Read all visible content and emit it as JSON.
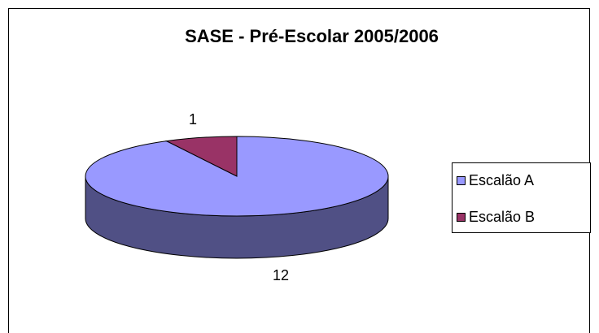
{
  "chart_data": {
    "type": "pie",
    "title": "SASE - Pré-Escolar 2005/2006",
    "categories": [
      "Escalão A",
      "Escalão B"
    ],
    "values": [
      12,
      1
    ],
    "colors": [
      "#9999ff",
      "#993366"
    ],
    "legend": "right"
  }
}
